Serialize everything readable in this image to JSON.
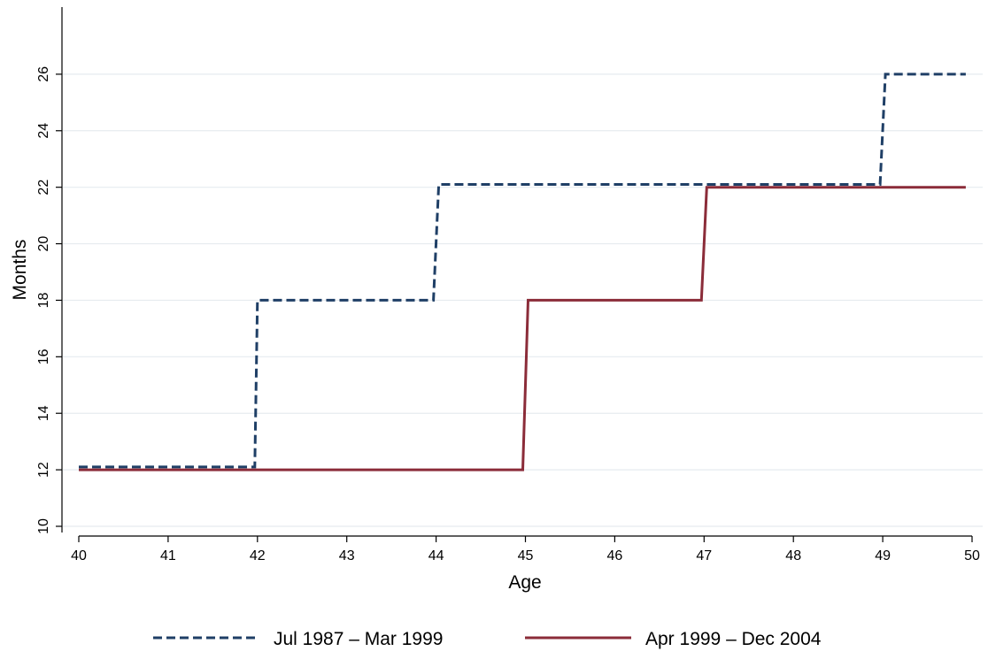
{
  "chart_data": {
    "type": "line",
    "xlabel": "Age",
    "ylabel": "Months",
    "xlim": [
      40,
      50
    ],
    "ylim": [
      10,
      28
    ],
    "x_ticks": [
      40,
      41,
      42,
      43,
      44,
      45,
      46,
      47,
      48,
      49,
      50
    ],
    "y_ticks": [
      10,
      12,
      14,
      16,
      18,
      20,
      22,
      24,
      26
    ],
    "grid": "horizontal",
    "legend_position": "bottom",
    "series": [
      {
        "name": "Jul 1987 – Mar 1999",
        "color": "#1f3f66",
        "style": "dashed",
        "points": [
          [
            40,
            12.1
          ],
          [
            41.97,
            12.1
          ],
          [
            42.0,
            18
          ],
          [
            43.97,
            18
          ],
          [
            44.03,
            22.1
          ],
          [
            48.97,
            22.1
          ],
          [
            49.03,
            26
          ],
          [
            49.93,
            26
          ]
        ]
      },
      {
        "name": "Apr 1999 – Dec 2004",
        "color": "#8b2c39",
        "style": "solid",
        "points": [
          [
            40,
            12
          ],
          [
            44.97,
            12
          ],
          [
            45.03,
            18
          ],
          [
            46.97,
            18
          ],
          [
            47.03,
            22
          ],
          [
            49.93,
            22
          ]
        ]
      }
    ]
  }
}
